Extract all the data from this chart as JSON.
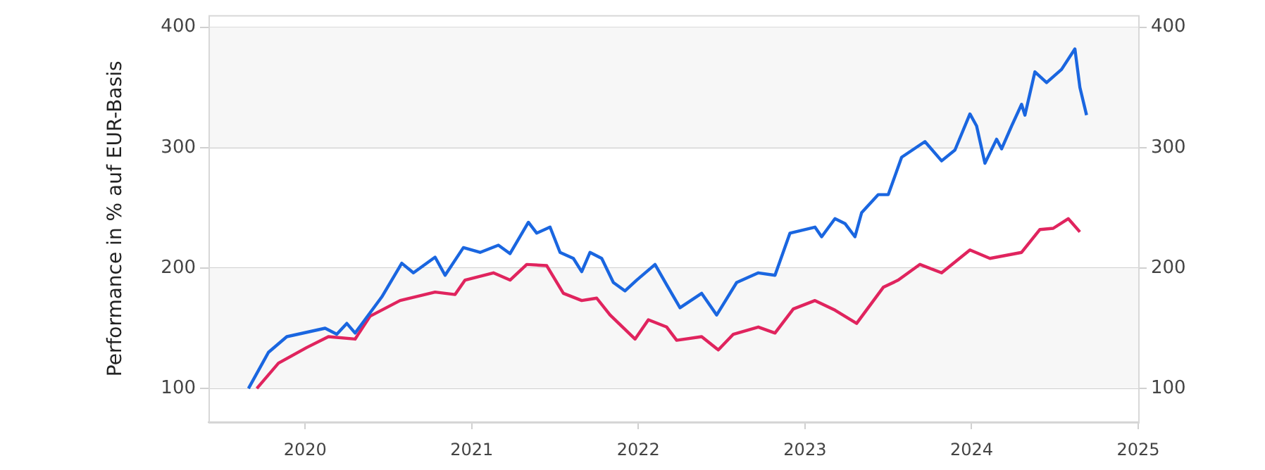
{
  "chart_data": {
    "type": "line",
    "ylabel": "Performance in % auf EUR-Basis",
    "xlim": [
      2019.42,
      2025
    ],
    "xticks": [
      2020,
      2021,
      2022,
      2023,
      2024,
      2025
    ],
    "ylim": [
      72,
      410
    ],
    "yticks": [
      100,
      200,
      300,
      400
    ],
    "y2lim": [
      72,
      410
    ],
    "y2ticks": [
      100,
      200,
      300,
      400
    ],
    "grid": "y",
    "legend": false,
    "marker": "none",
    "line_style": "solid",
    "bands": [
      {
        "axis": "y",
        "from": 100,
        "to": 200,
        "color": "#f7f7f7"
      },
      {
        "axis": "y",
        "from": 300,
        "to": 400,
        "color": "#f7f7f7"
      }
    ],
    "series": [
      {
        "color": "#1a66e0",
        "x": [
          2019.66,
          2019.78,
          2019.89,
          2020.12,
          2020.19,
          2020.25,
          2020.3,
          2020.46,
          2020.58,
          2020.65,
          2020.78,
          2020.84,
          2020.95,
          2021.05,
          2021.16,
          2021.23,
          2021.34,
          2021.39,
          2021.47,
          2021.53,
          2021.61,
          2021.66,
          2021.71,
          2021.78,
          2021.85,
          2021.92,
          2021.99,
          2022.1,
          2022.17,
          2022.25,
          2022.38,
          2022.47,
          2022.59,
          2022.72,
          2022.82,
          2022.91,
          2023.06,
          2023.1,
          2023.18,
          2023.24,
          2023.3,
          2023.34,
          2023.44,
          2023.5,
          2023.58,
          2023.72,
          2023.82,
          2023.9,
          2023.99,
          2024.03,
          2024.08,
          2024.15,
          2024.18,
          2024.24,
          2024.3,
          2024.32,
          2024.38,
          2024.45,
          2024.54,
          2024.62,
          2024.65,
          2024.69
        ],
        "values": [
          100,
          130,
          143,
          150,
          145,
          154,
          146,
          176,
          204,
          196,
          209,
          194,
          217,
          213,
          219,
          212,
          238,
          229,
          234,
          213,
          208,
          197,
          213,
          208,
          188,
          181,
          190,
          203,
          186,
          167,
          179,
          161,
          188,
          196,
          194,
          229,
          234,
          226,
          241,
          237,
          226,
          246,
          261,
          261,
          292,
          305,
          289,
          298,
          328,
          318,
          287,
          307,
          299,
          318,
          336,
          327,
          363,
          354,
          365,
          382,
          350,
          327
        ]
      },
      {
        "color": "#e0245e",
        "x": [
          2019.71,
          2019.84,
          2020.01,
          2020.14,
          2020.3,
          2020.39,
          2020.57,
          2020.78,
          2020.9,
          2020.96,
          2021.13,
          2021.23,
          2021.33,
          2021.45,
          2021.55,
          2021.66,
          2021.75,
          2021.83,
          2021.98,
          2022.06,
          2022.17,
          2022.23,
          2022.38,
          2022.48,
          2022.57,
          2022.72,
          2022.82,
          2022.93,
          2023.06,
          2023.18,
          2023.31,
          2023.47,
          2023.56,
          2023.69,
          2023.82,
          2023.99,
          2024.11,
          2024.3,
          2024.41,
          2024.49,
          2024.58,
          2024.65
        ],
        "values": [
          100,
          121,
          134,
          143,
          141,
          160,
          173,
          180,
          178,
          190,
          196,
          190,
          203,
          202,
          179,
          173,
          175,
          161,
          141,
          157,
          151,
          140,
          143,
          132,
          145,
          151,
          146,
          166,
          173,
          165,
          154,
          184,
          190,
          203,
          196,
          215,
          208,
          213,
          232,
          233,
          241,
          230
        ]
      }
    ]
  }
}
